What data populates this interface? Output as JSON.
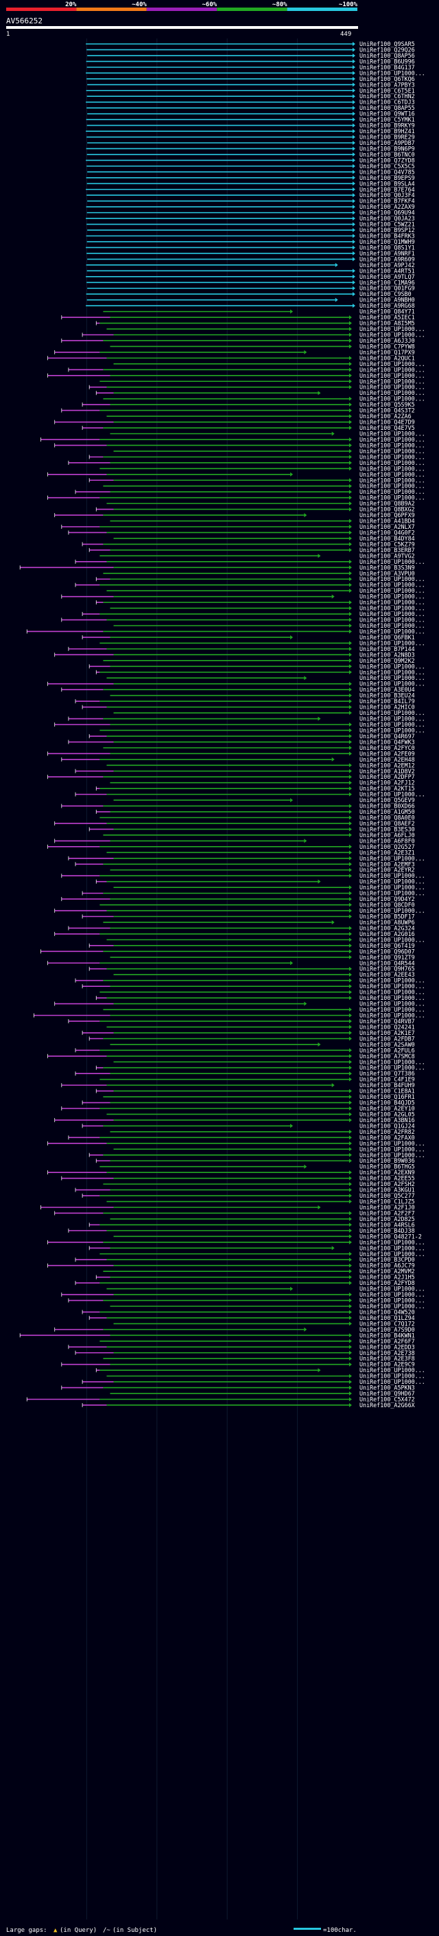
{
  "chart_data": {
    "type": "alignment-overview",
    "query_id": "AV566252",
    "scale_start": "1",
    "scale_end": "449",
    "query_length": 449,
    "identity_legend": [
      {
        "label": "20%",
        "color": "#e8202c"
      },
      {
        "label": "~40%",
        "color": "#f07818"
      },
      {
        "label": "~60%",
        "color": "#9a1fb8"
      },
      {
        "label": "~80%",
        "color": "#22a822"
      },
      {
        "label": "~100%",
        "color": "#28c8e0"
      }
    ],
    "hits_cyan": [
      "UniRef100_Q9SAR5",
      "UniRef100_Q29Q26",
      "UniRef100_Q8AP56",
      "UniRef100_B6U996",
      "UniRef100_B4G137",
      "UniRef100_UP1000...",
      "UniRef100_Q6TKQ6",
      "UniRef100_A7PBY3",
      "UniRef100_C6T5E1",
      "UniRef100_C6THN2",
      "UniRef100_C6TDJ3",
      "UniRef100_Q8AP55",
      "UniRef100_Q9WT16",
      "UniRef100_C5YMK1",
      "UniRef100_B9RKY9",
      "UniRef100_B9HZ41",
      "UniRef100_B9RE29",
      "UniRef100_A9PDB7",
      "UniRef100_B9N6P9",
      "UniRef100_B6TNC0",
      "UniRef100_Q7ZYD8",
      "UniRef100_C5X5C5",
      "UniRef100_Q4V785",
      "UniRef100_B9EPS9",
      "UniRef100_B9SLA4",
      "UniRef100_B7E764",
      "UniRef100_Q0J3F4",
      "UniRef100_B7FKF4",
      "UniRef100_A2ZAX9",
      "UniRef100_Q69U94",
      "UniRef100_Q0JA23",
      "UniRef100_C5WZ21",
      "UniRef100_B9SP12",
      "UniRef100_B4FRK3",
      "UniRef100_Q1MWH9",
      "UniRef100_Q8S1Y1",
      "UniRef100_A9NRF1",
      "UniRef100_A9R609",
      "UniRef100_A9PJ42",
      "UniRef100_A4RT51",
      "UniRef100_A9TLQ7",
      "UniRef100_C1MA96",
      "UniRef100_Q01FG9",
      "UniRef100_C9SB0",
      "UniRef100_A9NBH0",
      "UniRef100_A9RG68"
    ],
    "hits_mixed": [
      "UniRef100_Q84Y71",
      "UniRef100_A5IEC1",
      "UniRef100_A8I5M5",
      "UniRef100_UP1000...",
      "UniRef100_UP1000...",
      "UniRef100_A6J3J0",
      "UniRef100_C7PYW8",
      "UniRef100_Q17PX9",
      "UniRef100_A2QUC1",
      "UniRef100_UP1000...",
      "UniRef100_UP1000...",
      "UniRef100_UP1000...",
      "UniRef100_UP1000...",
      "UniRef100_UP1000...",
      "UniRef100_UP1000...",
      "UniRef100_UP1000...",
      "UniRef100_Q5S9K5",
      "UniRef100_Q4S3T2",
      "UniRef100_A2ZA6",
      "UniRef100_Q4E7D9",
      "UniRef100_Q4E7V5",
      "UniRef100_UP1000...",
      "UniRef100_UP1000...",
      "UniRef100_UP1000...",
      "UniRef100_UP1000...",
      "UniRef100_UP1000...",
      "UniRef100_UP1000...",
      "UniRef100_UP1000...",
      "UniRef100_UP1000...",
      "UniRef100_UP1000...",
      "UniRef100_UP1000...",
      "UniRef100_UP1000...",
      "UniRef100_UP1000...",
      "UniRef100_Q8B9A2",
      "UniRef100_Q8BXG2",
      "UniRef100_Q6PFX9",
      "UniRef100_A41BD4",
      "UniRef100_A2NLX7",
      "UniRef100_Q4G0F2",
      "UniRef100_B4DY84",
      "UniRef100_C5KZ79",
      "UniRef100_B3ERB7",
      "UniRef100_A9TVG2",
      "UniRef100_UP1000...",
      "UniRef100_B3S3N9",
      "UniRef100_A3VPU0",
      "UniRef100_UP1000...",
      "UniRef100_UP1000...",
      "UniRef100_UP1000...",
      "UniRef100_UP1000...",
      "UniRef100_UP1000...",
      "UniRef100_UP1000...",
      "UniRef100_UP1000...",
      "UniRef100_UP1000...",
      "UniRef100_UP1000...",
      "UniRef100_UP1000...",
      "UniRef100_Q6FBK1",
      "UniRef100_UP1000...",
      "UniRef100_B7P144",
      "UniRef100_A2N8D3",
      "UniRef100_Q9M2K2",
      "UniRef100_UP1000...",
      "UniRef100_UP1000...",
      "UniRef100_UP1000...",
      "UniRef100_UP1000...",
      "UniRef100_A3E0U4",
      "UniRef100_B3EU24",
      "UniRef100_B4IL79",
      "UniRef100_A2HIC0",
      "UniRef100_UP1000...",
      "UniRef100_UP1000...",
      "UniRef100_UP1000...",
      "UniRef100_UP1000...",
      "UniRef100_Q4R697",
      "UniRef100_Q4FWK3",
      "UniRef100_A2FYC0",
      "UniRef100_A2FE09",
      "UniRef100_A2EH48",
      "UniRef100_A2EM12",
      "UniRef100_A1D8V2",
      "UniRef100_A2DFP7",
      "UniRef100_A2FJ12",
      "UniRef100_A2KT15",
      "UniRef100_UP1000...",
      "UniRef100_Q5GEV9",
      "UniRef100_B0XD66",
      "UniRef100_A1GM50",
      "UniRef100_Q8A0E0",
      "UniRef100_Q8AEF2",
      "UniRef100_B3ES30",
      "UniRef100_A6FLJ0",
      "UniRef100_A6F8F0",
      "UniRef100_Q2G527",
      "UniRef100_A2E3Z1",
      "UniRef100_UP1000...",
      "UniRef100_A2EMF3",
      "UniRef100_A2EYR2",
      "UniRef100_UP1000...",
      "UniRef100_UP1000...",
      "UniRef100_UP1000...",
      "UniRef100_UP1000...",
      "UniRef100_Q9D4Y2",
      "UniRef100_Q8CDF0",
      "UniRef100_UP1000...",
      "UniRef100_B5DF17",
      "UniRef100_A8UWP6",
      "UniRef100_A2G324",
      "UniRef100_A2G016",
      "UniRef100_UP1000...",
      "UniRef100_Q6T419",
      "UniRef100_Q96D07",
      "UniRef100_Q91ZT9",
      "UniRef100_Q4R544",
      "UniRef100_Q9H765",
      "UniRef100_A2EE43",
      "UniRef100_UP1000...",
      "UniRef100_UP1000...",
      "UniRef100_UP1000...",
      "UniRef100_UP1000...",
      "UniRef100_UP1000...",
      "UniRef100_UP1000...",
      "UniRef100_UP1000...",
      "UniRef100_Q4RVB7",
      "UniRef100_Q24241",
      "UniRef100_A2K1E7",
      "UniRef100_A2FDB7",
      "UniRef100_A2SAW0",
      "UniRef100_A2FUL6",
      "UniRef100_A7SMC8",
      "UniRef100_UP1000...",
      "UniRef100_UP1000...",
      "UniRef100_Q7T386",
      "UniRef100_C4F1E9",
      "UniRef100_B4FUH9",
      "UniRef100_C1E8A1",
      "UniRef100_Q16FR1",
      "UniRef100_B4QJD5",
      "UniRef100_A2EY10",
      "UniRef100_A2GL05",
      "UniRef100_A3BN16",
      "UniRef100_Q1GJ24",
      "UniRef100_A2FR82",
      "UniRef100_A2FAX0",
      "UniRef100_UP1000...",
      "UniRef100_UP1000...",
      "UniRef100_UP1000...",
      "UniRef100_B9W036",
      "UniRef100_B6THG5",
      "UniRef100_A2EXN9",
      "UniRef100_A2EE55",
      "UniRef100_A2FSH2",
      "UniRef100_A3KGU1",
      "UniRef100_Q5C277",
      "UniRef100_C1LJZ5",
      "UniRef100_A2F1J0",
      "UniRef100_A2F2F7",
      "UniRef100_A2D825",
      "UniRef100_A4RSL6",
      "UniRef100_B4DJ38",
      "UniRef100_Q48271-2",
      "UniRef100_UP1000...",
      "UniRef100_UP1000...",
      "UniRef100_UP1000...",
      "UniRef100_B3CPD0",
      "UniRef100_A6JC79",
      "UniRef100_A2MVM2",
      "UniRef100_A2J1H5",
      "UniRef100_A2FYD8",
      "UniRef100_UP1000...",
      "UniRef100_UP1000...",
      "UniRef100_UP1000...",
      "UniRef100_UP1000...",
      "UniRef100_Q4W520",
      "UniRef100_Q1LZ94",
      "UniRef100_C7Q172",
      "UniRef100_A7S9D0",
      "UniRef100_B4KWN1",
      "UniRef100_A2F6F7",
      "UniRef100_A2EDD3",
      "UniRef100_A2E738",
      "UniRef100_A2E3F8",
      "UniRef100_A2E9C9",
      "UniRef100_UP1000...",
      "UniRef100_UP1000...",
      "UniRef100_UP1000...",
      "UniRef100_A5PKN3",
      "UniRef100_Q9HD67",
      "UniRef100_C5X472",
      "UniRef100_A2G66X"
    ]
  },
  "footer": {
    "large_gaps": "Large gaps:",
    "in_query": "(in Query)",
    "in_subject": "(in Subject)",
    "scale_label": "=100char."
  }
}
